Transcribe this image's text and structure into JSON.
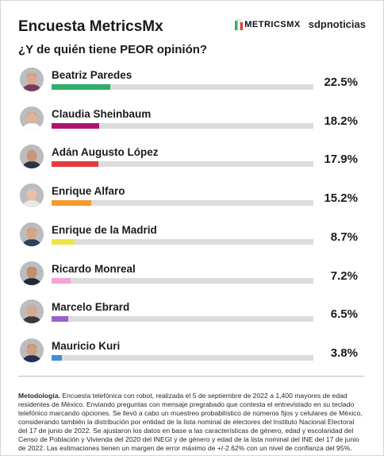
{
  "header": {
    "title": "Encuesta MetricsMx",
    "brand_metrics": "METRICSMX",
    "brand_sdp": "sdpnoticias",
    "question": "¿Y de quién tiene PEOR opinión?"
  },
  "chart_data": {
    "type": "bar",
    "orientation": "horizontal",
    "title": "¿Y de quién tiene PEOR opinión?",
    "xlim": [
      0,
      100
    ],
    "categories": [
      "Beatriz Paredes",
      "Claudia Sheinbaum",
      "Adán Augusto López",
      "Enrique Alfaro",
      "Enrique de la Madrid",
      "Ricardo Monreal",
      "Marcelo Ebrard",
      "Mauricio Kuri"
    ],
    "values": [
      22.5,
      18.2,
      17.9,
      15.2,
      8.7,
      7.2,
      6.5,
      3.8
    ],
    "labels": [
      "22.5%",
      "18.2%",
      "17.9%",
      "15.2%",
      "8.7%",
      "7.2%",
      "6.5%",
      "3.8%"
    ],
    "colors": [
      "#2fae6a",
      "#b0136f",
      "#e23b3b",
      "#f59b2f",
      "#ece44a",
      "#f5a3d3",
      "#9a5fcc",
      "#3d8ee0"
    ]
  },
  "methodology": {
    "label": "Metodología.",
    "text": " Encuesta telefónica con robot, realizada el 5 de septiembre de 2022 a 1,400 mayores de edad residentes de México. Enviando preguntas con mensaje pregrabado que contesta el entrevistado en su teclado telefónico marcando opciones. Se llevó a cabo un muestreo probabilístico de números fijos y celulares de México, considerando también la distribución por entidad de la lista nominal de electores del Instituto Nacional Electoral del 17 de junio de 2022. Se ajustaron los datos en base a las características de género, edad y escolaridad del Censo de Población y Vivienda del 2020 del INEGI y de género y edad de la lista nominal del INE del 17 de junio de 2022. Las estimaciones tienen un margen de error máximo de +/-2.62% con un nivel de confianza del 95%."
  }
}
